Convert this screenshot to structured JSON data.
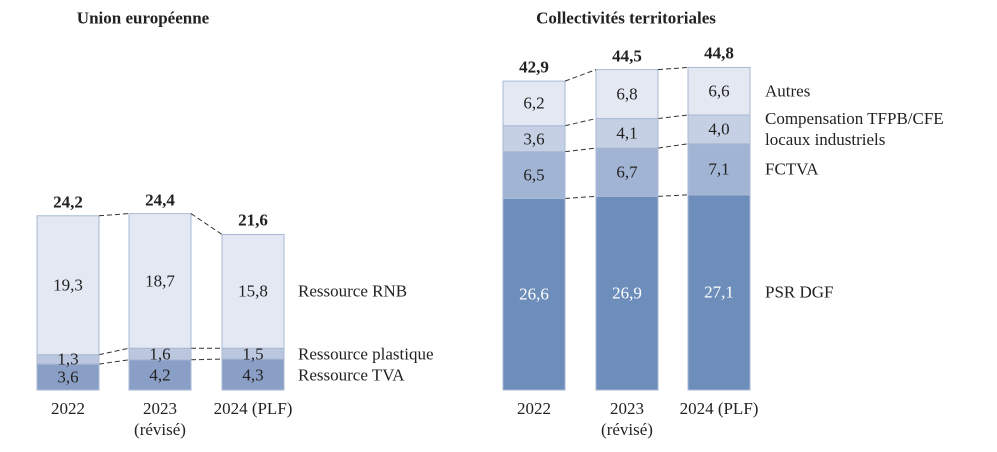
{
  "chart_data": [
    {
      "type": "stacked-bar",
      "title": "Union européenne",
      "categories": [
        "2022",
        "2023\n(révisé)",
        "2024 (PLF)"
      ],
      "series": [
        {
          "name": "Ressource TVA",
          "color": "#8a9fc6",
          "values": [
            3.6,
            4.2,
            4.3
          ],
          "value_labels": [
            "3,6",
            "4,2",
            "4,3"
          ]
        },
        {
          "name": "Ressource plastique",
          "color": "#bac7de",
          "values": [
            1.3,
            1.6,
            1.5
          ],
          "value_labels": [
            "1,3",
            "1,6",
            "1,5"
          ]
        },
        {
          "name": "Ressource RNB",
          "color": "#e3e8f2",
          "values": [
            19.3,
            18.7,
            15.8
          ],
          "value_labels": [
            "19,3",
            "18,7",
            "15,8"
          ]
        }
      ],
      "totals": [
        24.2,
        24.4,
        21.6
      ],
      "total_labels": [
        "24,2",
        "24,4",
        "21,6"
      ]
    },
    {
      "type": "stacked-bar",
      "title": "Collectivités territoriales",
      "categories": [
        "2022",
        "2023\n(révisé)",
        "2024 (PLF)"
      ],
      "series": [
        {
          "name": "PSR DGF",
          "color": "#6d8dba",
          "label_color": "#ffffff",
          "values": [
            26.6,
            26.9,
            27.1
          ],
          "value_labels": [
            "26,6",
            "26,9",
            "27,1"
          ]
        },
        {
          "name": "FCTVA",
          "color": "#a2b4d4",
          "values": [
            6.5,
            6.7,
            7.1
          ],
          "value_labels": [
            "6,5",
            "6,7",
            "7,1"
          ]
        },
        {
          "name": "Compensation TFPB/CFE\nlocaux industriels",
          "color": "#c5d0e4",
          "values": [
            3.6,
            4.1,
            4.0
          ],
          "value_labels": [
            "3,6",
            "4,1",
            "4,0"
          ]
        },
        {
          "name": "Autres",
          "color": "#e3e8f2",
          "values": [
            6.2,
            6.8,
            6.6
          ],
          "value_labels": [
            "6,2",
            "6,8",
            "6,6"
          ]
        }
      ],
      "totals": [
        42.9,
        44.5,
        44.8
      ],
      "total_labels": [
        "42,9",
        "44,5",
        "44,8"
      ]
    }
  ]
}
